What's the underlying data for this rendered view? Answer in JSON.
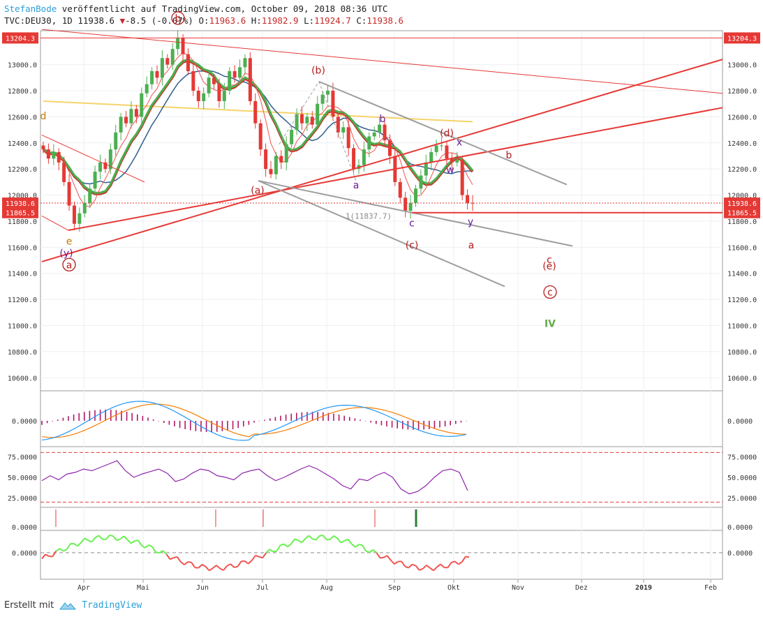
{
  "header": {
    "author": "StefanBode",
    "published": "veröffentlicht auf TradingView.com, October 09, 2018 08:36 UTC",
    "symbol": "TVC:DEU30, 1D",
    "last": "11938.6",
    "change": "-8.5 (-0.07%)",
    "open_label": "O:",
    "open": "11963.6",
    "high_label": "H:",
    "high": "11982.9",
    "low_label": "L:",
    "low": "11924.7",
    "close_label": "C:",
    "close": "11938.6"
  },
  "footer": {
    "created_with": "Erstellt mit",
    "brand": "TradingView"
  },
  "colors": {
    "up": "#4caf50",
    "down": "#e53935",
    "trendline": "#e53935",
    "channel": "#9e9e9e",
    "ma_blue": "#2f5f8f",
    "ma_yellow": "#f6d36b",
    "wave_red": "#b71c1c",
    "wave_purple": "#6a1b9a",
    "wave_orange": "#c77800",
    "wave_green": "#66a84b"
  },
  "chart_data": [
    {
      "type": "candlestick",
      "x_ticks": [
        "Apr",
        "Mai",
        "Jun",
        "Jul",
        "Aug",
        "Sep",
        "Okt",
        "Nov",
        "Dez",
        "2019",
        "Feb"
      ],
      "y_ticks": [
        10600,
        10800,
        11000,
        11200,
        11400,
        11600,
        11800,
        12000,
        12200,
        12400,
        12600,
        12800,
        13000
      ],
      "ylim": [
        10500,
        13260
      ],
      "price_tags": [
        {
          "value": 13204.3,
          "label": "13204.3"
        },
        {
          "value": 11938.6,
          "label": "11938.6"
        },
        {
          "value": 11865.5,
          "label": "11865.5"
        }
      ],
      "price_path": [
        12350,
        12280,
        12330,
        12250,
        12100,
        11920,
        11780,
        11860,
        11940,
        12050,
        12180,
        12250,
        12200,
        12350,
        12480,
        12600,
        12550,
        12660,
        12600,
        12780,
        12850,
        12950,
        12900,
        13050,
        13000,
        13120,
        13204,
        13080,
        12950,
        12800,
        12720,
        12780,
        12900,
        12850,
        12720,
        12800,
        12950,
        12900,
        12980,
        13050,
        12720,
        12550,
        12350,
        12200,
        12160,
        12300,
        12250,
        12390,
        12500,
        12620,
        12550,
        12600,
        12540,
        12700,
        12770,
        12800,
        12600,
        12480,
        12520,
        12360,
        12200,
        12230,
        12350,
        12450,
        12480,
        12540,
        12420,
        12300,
        12100,
        11980,
        11880,
        11940,
        12050,
        12150,
        12250,
        12330,
        12380,
        12380,
        12280,
        12250,
        12270,
        12000,
        11940,
        11938.6
      ],
      "wave_labels": [
        {
          "text": "b",
          "circled": true,
          "price": 13330,
          "color": "wave_red"
        },
        {
          "text": "(b)",
          "price": 12930,
          "color": "wave_red"
        },
        {
          "text": "(a)",
          "price": 12010,
          "color": "wave_red"
        },
        {
          "text": "b",
          "price": 12560,
          "color": "wave_purple"
        },
        {
          "text": "a",
          "price": 12050,
          "color": "wave_purple"
        },
        {
          "text": "(d)",
          "price": 12450,
          "color": "wave_red"
        },
        {
          "text": "x",
          "price": 12380,
          "color": "wave_purple"
        },
        {
          "text": "w",
          "price": 12170,
          "color": "wave_purple"
        },
        {
          "text": "b",
          "price": 12280,
          "color": "wave_red"
        },
        {
          "text": "c",
          "price": 11760,
          "color": "wave_purple"
        },
        {
          "text": "y",
          "price": 11770,
          "color": "wave_purple"
        },
        {
          "text": "(c)",
          "price": 11590,
          "color": "wave_red"
        },
        {
          "text": "a",
          "price": 11590,
          "color": "wave_red"
        },
        {
          "text": "d",
          "price": 12580,
          "color": "wave_orange"
        },
        {
          "text": "e",
          "price": 11620,
          "color": "wave_orange"
        },
        {
          "text": "(y)",
          "price": 11530,
          "color": "wave_purple"
        },
        {
          "text": "a",
          "circled": true,
          "price": 11440,
          "color": "wave_red"
        },
        {
          "text": "c",
          "price": 11480,
          "color": "wave_red"
        },
        {
          "text": "(e)",
          "price": 11430,
          "color": "wave_red"
        },
        {
          "text": "c",
          "circled": true,
          "price": 11230,
          "color": "wave_red"
        },
        {
          "text": "IV",
          "price": 10990,
          "color": "wave_green"
        }
      ],
      "annotation": {
        "text": "1(11837.7)",
        "price": 11840
      }
    },
    {
      "type": "line",
      "name": "MACD",
      "y_ticks": [
        0.0
      ],
      "y_tick_labels": [
        "0.0000"
      ]
    },
    {
      "type": "line",
      "name": "RSI",
      "y_ticks": [
        75,
        50,
        25
      ],
      "y_tick_labels": [
        "75.0000",
        "50.0000",
        "25.0000"
      ],
      "series": [
        {
          "values": [
            46,
            52,
            47,
            54,
            56,
            60,
            58,
            62,
            66,
            70,
            58,
            50,
            54,
            57,
            60,
            55,
            45,
            48,
            55,
            60,
            58,
            52,
            50,
            47,
            55,
            58,
            60,
            52,
            46,
            50,
            55,
            60,
            64,
            60,
            54,
            48,
            40,
            36,
            48,
            46,
            52,
            56,
            50,
            36,
            30,
            33,
            40,
            50,
            58,
            60,
            56,
            34
          ]
        }
      ]
    },
    {
      "type": "bar",
      "name": "Signals",
      "y_ticks": [
        0.0
      ],
      "y_tick_labels": [
        "0.0000"
      ]
    },
    {
      "type": "line",
      "name": "Oscillator",
      "y_ticks": [
        0.0
      ],
      "y_tick_labels": [
        "0.0000"
      ]
    }
  ]
}
